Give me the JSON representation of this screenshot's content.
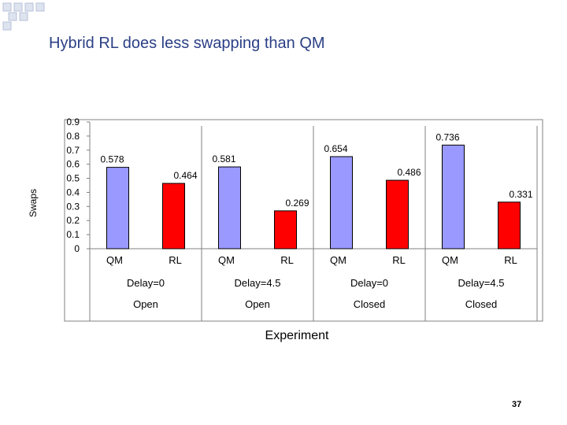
{
  "slide": {
    "title": "Hybrid RL does less swapping than QM",
    "number": "37"
  },
  "colors": {
    "qm_bar": "#9999ff",
    "rl_bar": "#ff0000",
    "bar_stroke": "#000000",
    "title_text": "#2b3f85",
    "deco_squares": "#c5cde0"
  },
  "chart_data": {
    "type": "bar",
    "title": "",
    "xlabel": "Experiment",
    "ylabel": "Swaps",
    "ylim": [
      0,
      0.9
    ],
    "yticks": [
      "0.9",
      "0.8",
      "0.7",
      "0.6",
      "0.5",
      "0.4",
      "0.3",
      "0.2",
      "0.1",
      "0"
    ],
    "grid": false,
    "legend": "none",
    "groups": [
      {
        "delay": "Delay=0",
        "state": "Open",
        "bars": [
          {
            "label": "QM",
            "value": 0.578,
            "display": "0.578"
          },
          {
            "label": "RL",
            "value": 0.464,
            "display": "0.464"
          }
        ]
      },
      {
        "delay": "Delay=4.5",
        "state": "Open",
        "bars": [
          {
            "label": "QM",
            "value": 0.581,
            "display": "0.581"
          },
          {
            "label": "RL",
            "value": 0.269,
            "display": "0.269"
          }
        ]
      },
      {
        "delay": "Delay=0",
        "state": "Closed",
        "bars": [
          {
            "label": "QM",
            "value": 0.654,
            "display": "0.654"
          },
          {
            "label": "RL",
            "value": 0.486,
            "display": "0.486"
          }
        ]
      },
      {
        "delay": "Delay=4.5",
        "state": "Closed",
        "bars": [
          {
            "label": "QM",
            "value": 0.736,
            "display": "0.736"
          },
          {
            "label": "RL",
            "value": 0.331,
            "display": "0.331"
          }
        ]
      }
    ]
  }
}
